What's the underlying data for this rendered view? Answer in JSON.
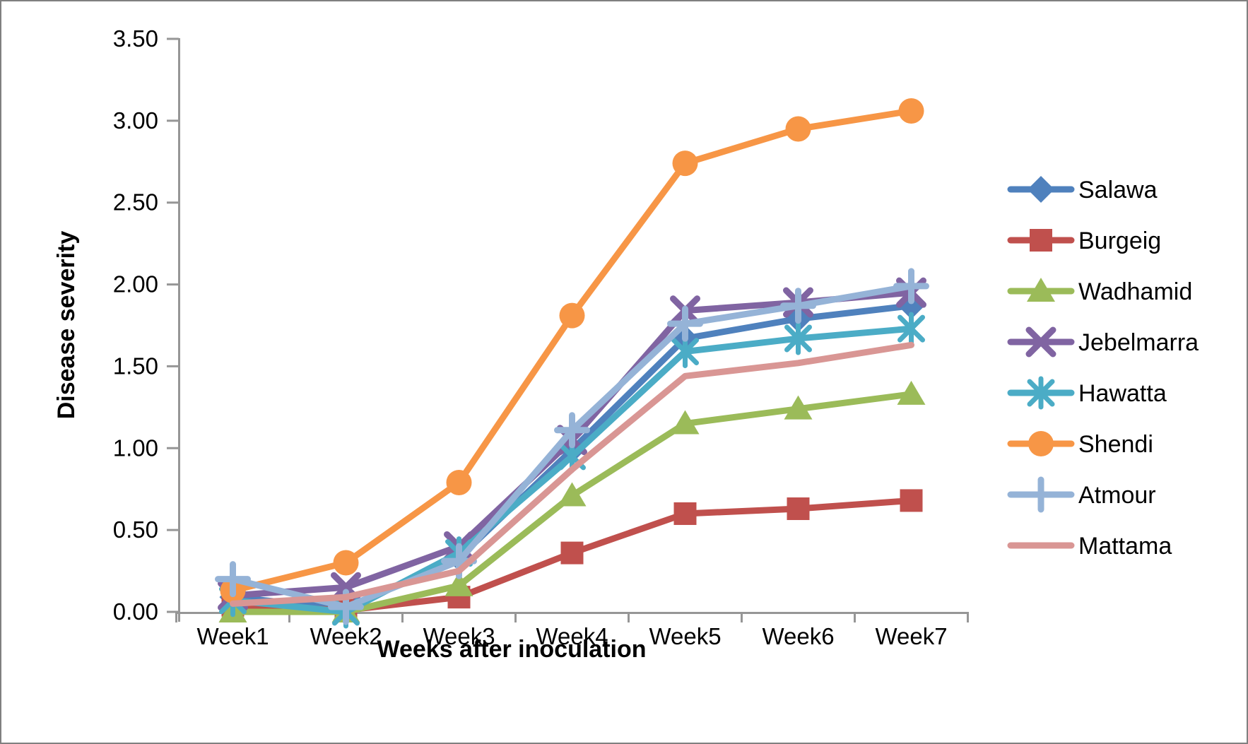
{
  "chart_data": {
    "type": "line",
    "title": "",
    "xlabel": "Weeks after inoculation",
    "ylabel": "Disease severity",
    "categories": [
      "Week1",
      "Week2",
      "Week3",
      "Week4",
      "Week5",
      "Week6",
      "Week7"
    ],
    "series": [
      {
        "name": "Salawa",
        "color": "#4F81BD",
        "marker": "diamond",
        "values": [
          0.09,
          0.02,
          0.33,
          0.99,
          1.67,
          1.79,
          1.87
        ]
      },
      {
        "name": "Burgeig",
        "color": "#C0504D",
        "marker": "square",
        "values": [
          0.04,
          0.01,
          0.09,
          0.36,
          0.6,
          0.63,
          0.68
        ]
      },
      {
        "name": "Wadhamid",
        "color": "#9BBB59",
        "marker": "triangle",
        "values": [
          0.0,
          0.0,
          0.16,
          0.71,
          1.15,
          1.24,
          1.33
        ]
      },
      {
        "name": "Jebelmarra",
        "color": "#8064A2",
        "marker": "x",
        "values": [
          0.1,
          0.15,
          0.4,
          1.05,
          1.84,
          1.89,
          1.95
        ]
      },
      {
        "name": "Hawatta",
        "color": "#4BACC6",
        "marker": "asterisk",
        "values": [
          0.07,
          0.0,
          0.36,
          0.95,
          1.59,
          1.67,
          1.73
        ]
      },
      {
        "name": "Shendi",
        "color": "#F79646",
        "marker": "circle",
        "values": [
          0.13,
          0.3,
          0.79,
          1.81,
          2.74,
          2.95,
          3.06
        ]
      },
      {
        "name": "Atmour",
        "color": "#95B3D7",
        "marker": "plus",
        "values": [
          0.2,
          0.03,
          0.31,
          1.11,
          1.76,
          1.87,
          1.99
        ]
      },
      {
        "name": "Mattama",
        "color": "#D99694",
        "marker": "none",
        "values": [
          0.05,
          0.09,
          0.25,
          0.87,
          1.44,
          1.52,
          1.63
        ]
      }
    ],
    "ylim": [
      0,
      3.5
    ],
    "ytick_labels": [
      "0.00",
      "0.50",
      "1.00",
      "1.50",
      "2.00",
      "2.50",
      "3.00",
      "3.50"
    ],
    "legend_position": "right",
    "grid": false,
    "axis_color": "#969696",
    "text_color": "#000000",
    "background_color": "#FFFFFF"
  }
}
